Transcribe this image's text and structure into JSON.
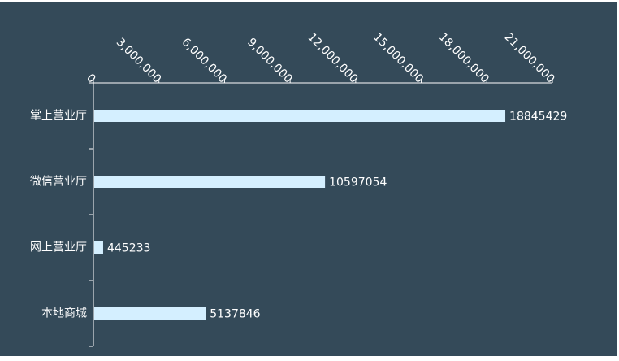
{
  "colors": {
    "background": "#344a59",
    "bar": "#d4efff",
    "axis": "#ffffff",
    "tick_label": "#ffffff",
    "category_label": "#ffffff",
    "value_label": "#ffffff"
  },
  "chart_data": {
    "type": "bar",
    "orientation": "horizontal",
    "value_axis_position": "top",
    "categories": [
      "掌上营业厅",
      "微信营业厅",
      "网上营业厅",
      "本地商城"
    ],
    "values": [
      18845429,
      10597054,
      445233,
      5137846
    ],
    "value_labels": [
      "18845429",
      "10597054",
      "445233",
      "5137846"
    ],
    "xlim": [
      0,
      21000000
    ],
    "x_ticks": [
      0,
      3000000,
      6000000,
      9000000,
      12000000,
      15000000,
      18000000,
      21000000
    ],
    "x_tick_labels": [
      "0",
      "3,000,000",
      "6,000,000",
      "9,000,000",
      "12,000,000",
      "15,000,000",
      "18,000,000",
      "21,000,000"
    ],
    "grid": false,
    "legend": "none"
  }
}
